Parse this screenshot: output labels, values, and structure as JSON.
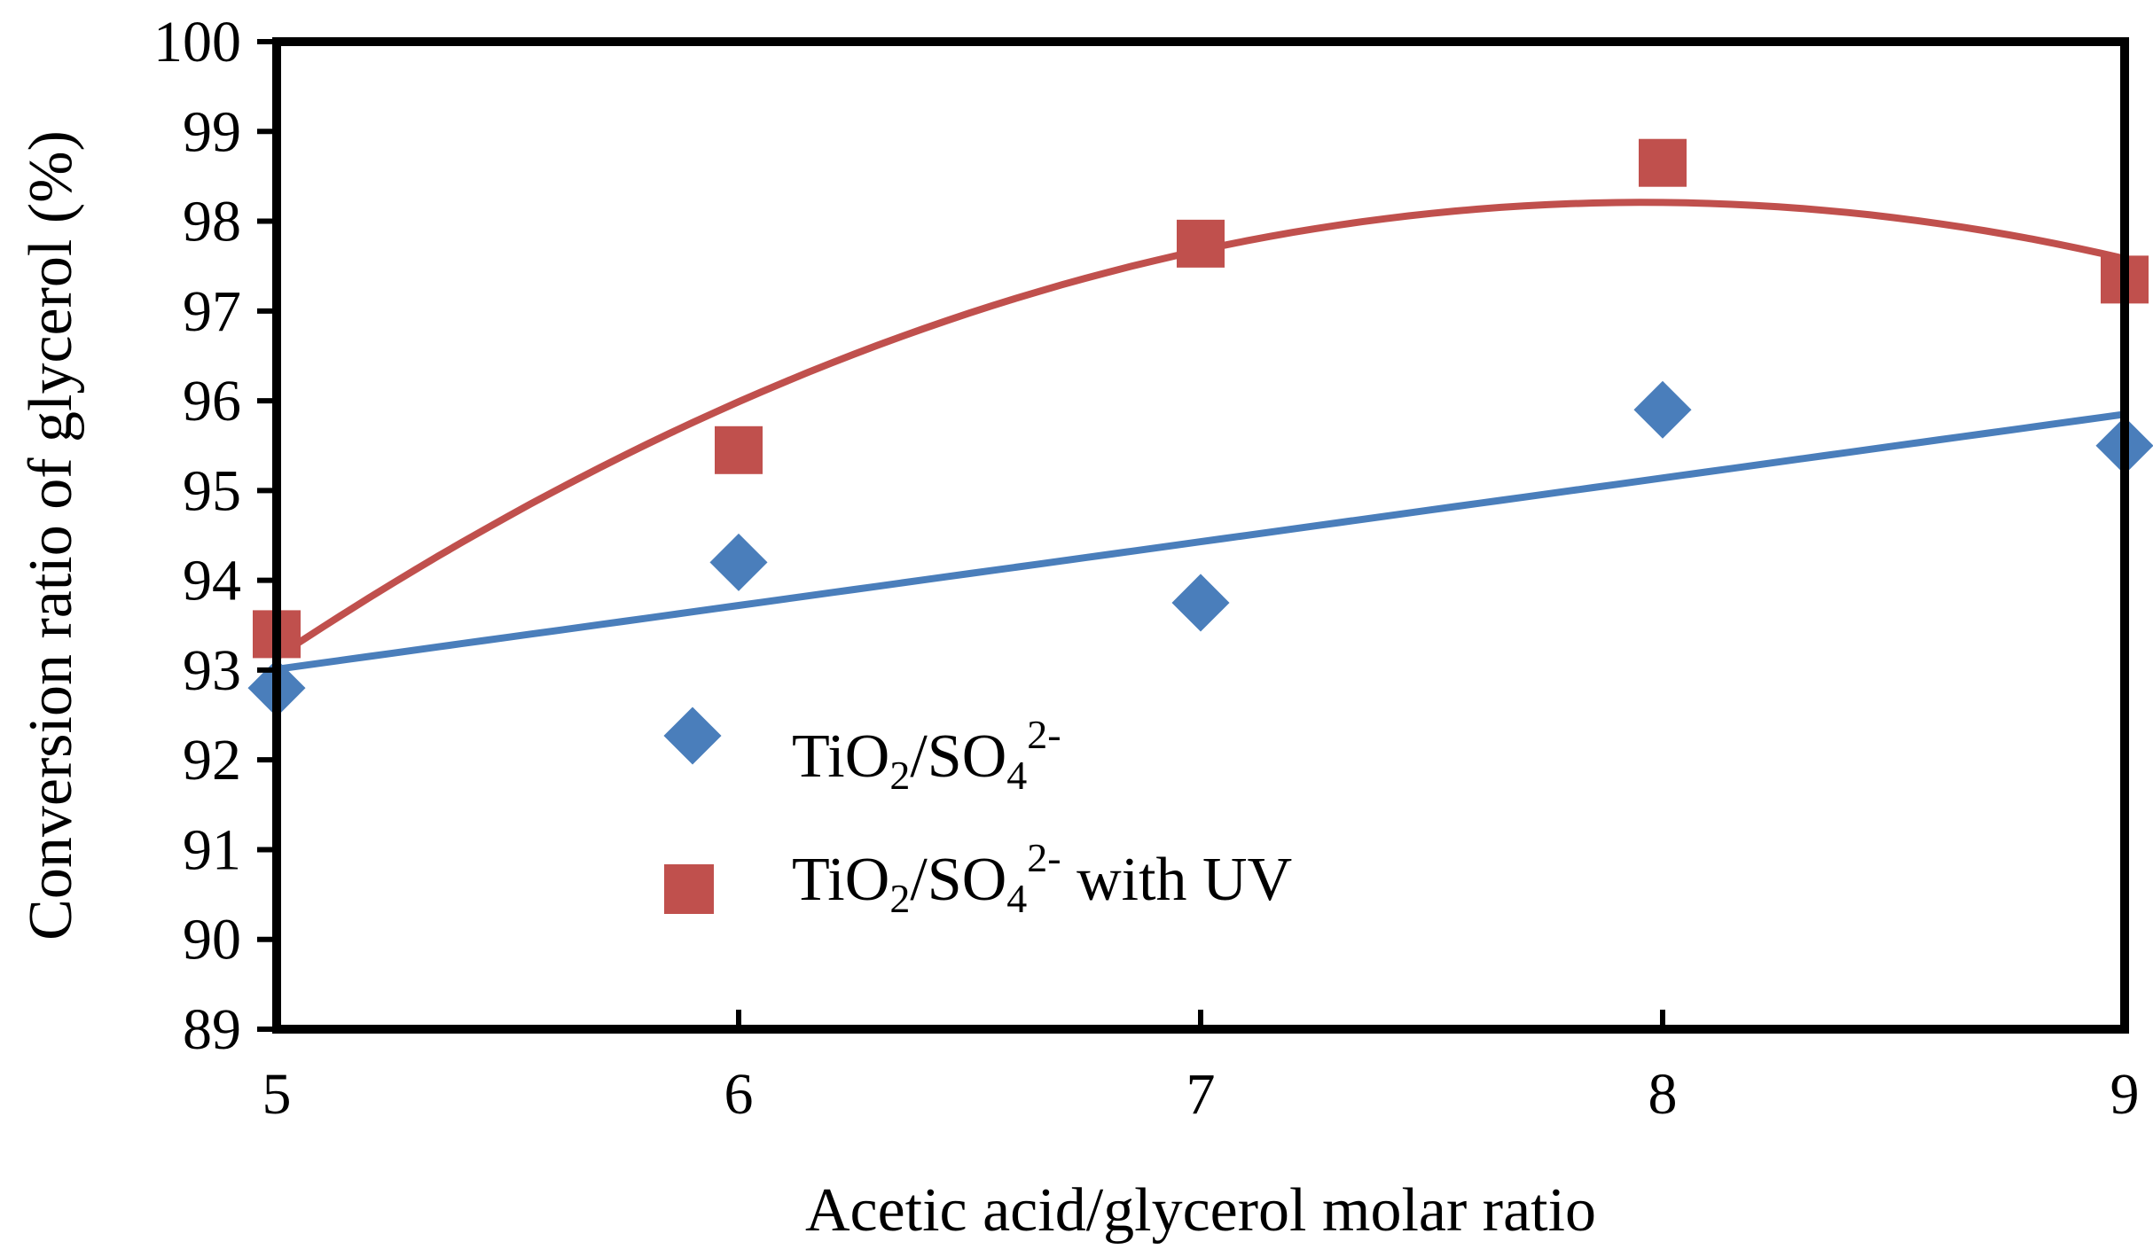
{
  "chart_data": {
    "type": "scatter",
    "title": "",
    "xlabel": "Acetic acid/glycerol molar ratio",
    "ylabel": "Conversion ratio of glycerol (%)",
    "xlim": [
      5,
      9
    ],
    "ylim": [
      89,
      100
    ],
    "x_ticks": [
      "5",
      "6",
      "7",
      "8",
      "9"
    ],
    "y_ticks": [
      "89",
      "90",
      "91",
      "92",
      "93",
      "94",
      "95",
      "96",
      "97",
      "98",
      "99",
      "100"
    ],
    "grid": false,
    "legend_position": "center-left",
    "series": [
      {
        "name": "TiO2/SO4 2-",
        "legend_parts": [
          "TiO",
          "2",
          "/SO",
          "4",
          "2-"
        ],
        "marker": "diamond",
        "color": "#4a7ebb",
        "x": [
          5,
          6,
          7,
          8,
          9
        ],
        "values": [
          92.8,
          94.2,
          93.75,
          95.9,
          95.5
        ],
        "trendline": "linear"
      },
      {
        "name": "TiO2/SO4 2- with UV",
        "legend_parts": [
          "TiO",
          "2",
          "/SO",
          "4",
          "2-",
          " with UV"
        ],
        "marker": "square",
        "color": "#c0504d",
        "x": [
          5,
          6,
          7,
          8,
          9
        ],
        "values": [
          93.4,
          95.45,
          97.75,
          98.65,
          97.35
        ],
        "trendline": "polynomial-2"
      }
    ]
  }
}
